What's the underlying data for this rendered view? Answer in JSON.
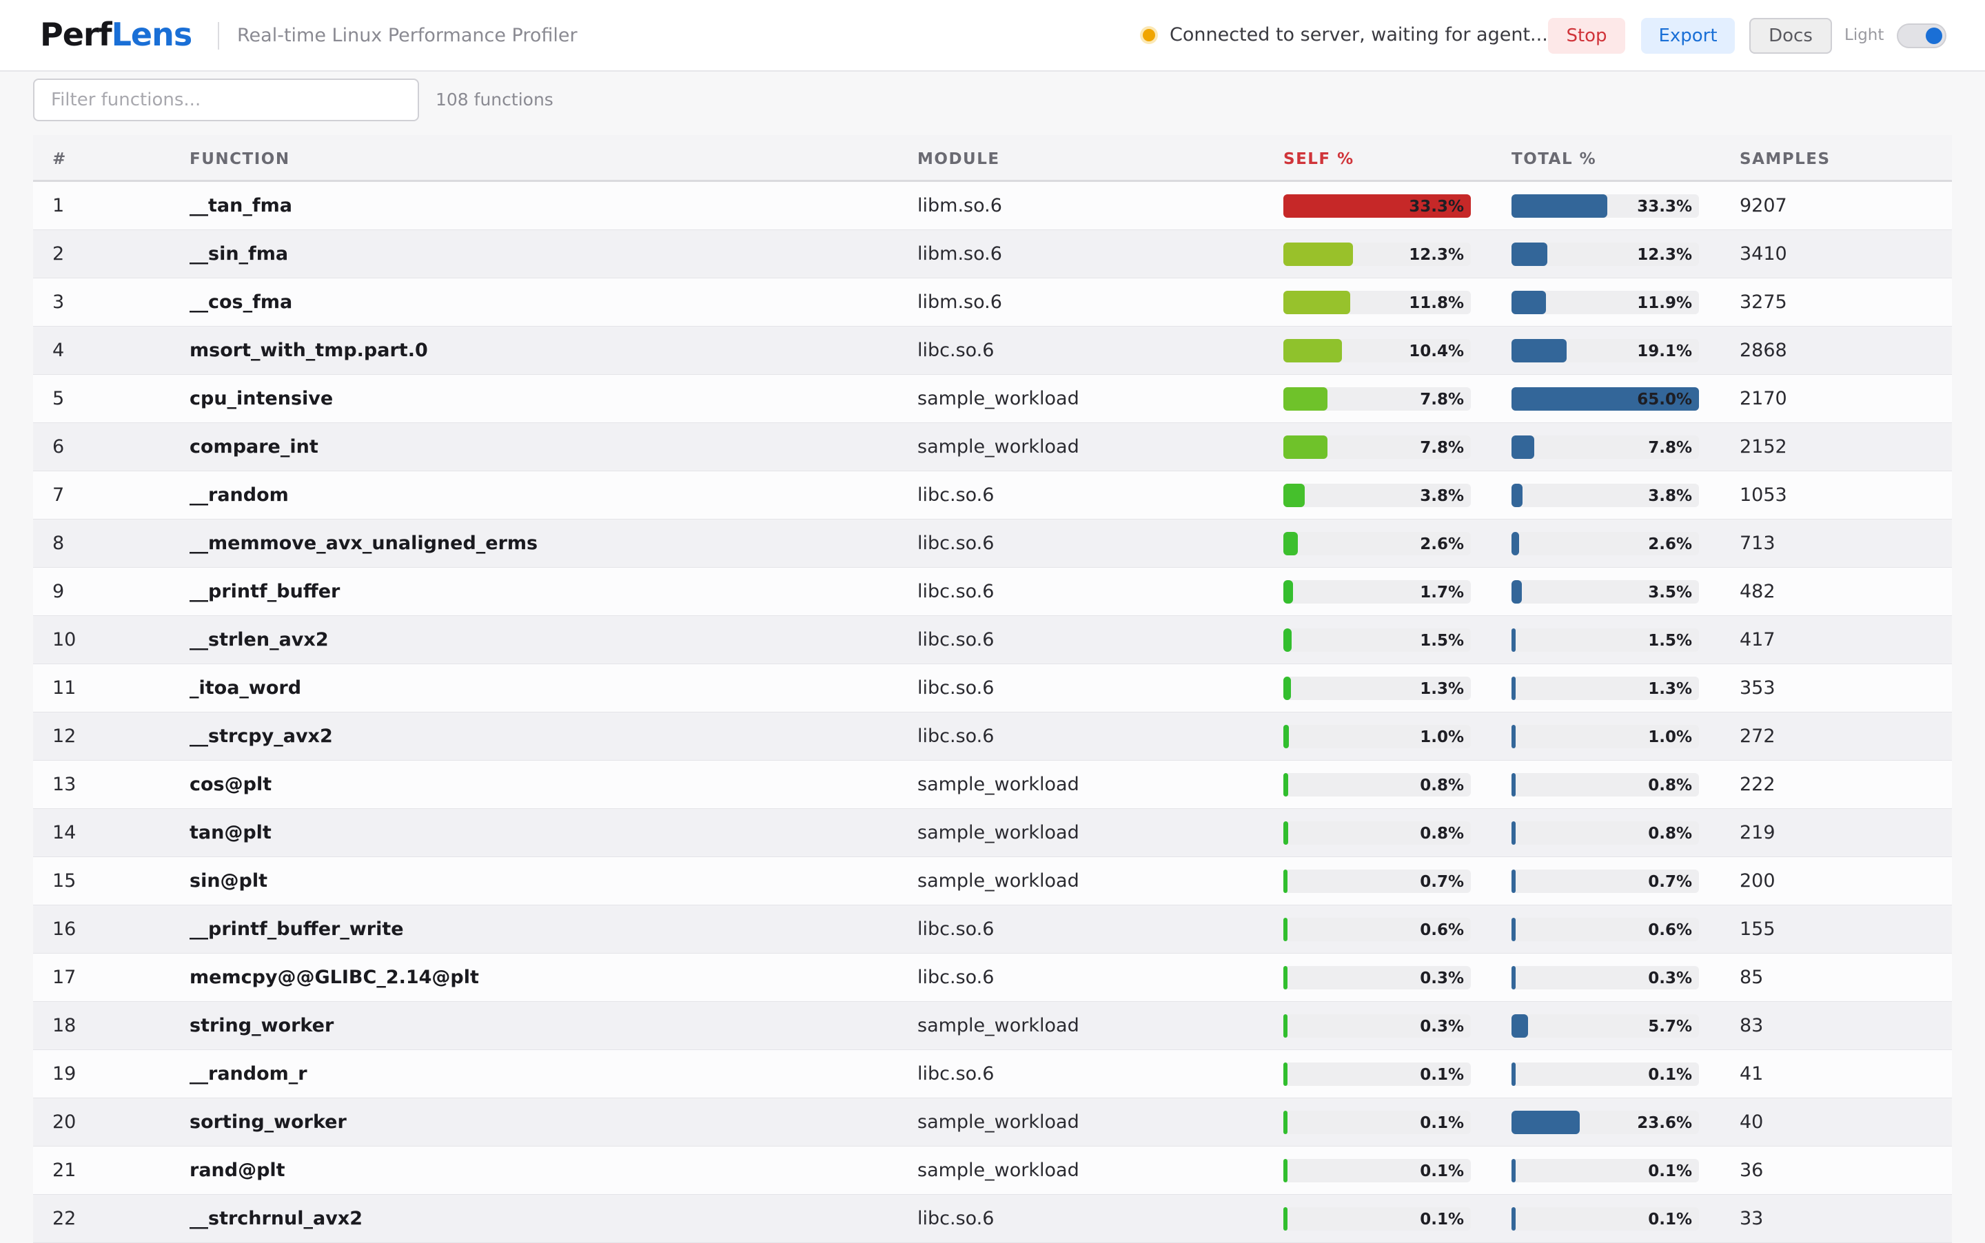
{
  "app": {
    "logo_part1": "Perf",
    "logo_part2": "Lens",
    "subtitle": "Real-time Linux Performance Profiler"
  },
  "status": {
    "text": "Connected to server, waiting for agent...",
    "dot_color": "#f0a500"
  },
  "toolbar": {
    "stop_label": "Stop",
    "export_label": "Export",
    "docs_label": "Docs",
    "theme_label": "Light",
    "theme_toggle_on": true
  },
  "filter": {
    "placeholder": "Filter functions...",
    "value": ""
  },
  "function_count": "108 functions",
  "colors": {
    "accent": "#1a6fd6",
    "self_hot": "#c62828",
    "total_bar": "#336699",
    "stop": "#d0343a"
  },
  "table": {
    "columns": [
      "#",
      "FUNCTION",
      "MODULE",
      "SELF %",
      "TOTAL %",
      "SAMPLES"
    ],
    "rows": [
      {
        "idx": "1",
        "function": "__tan_fma",
        "module": "libm.so.6",
        "self": "33.3%",
        "self_frac": 1.0,
        "self_color": "#c62828",
        "total": "33.3%",
        "total_frac": 0.512,
        "samples": "9207"
      },
      {
        "idx": "2",
        "function": "__sin_fma",
        "module": "libm.so.6",
        "self": "12.3%",
        "self_frac": 0.37,
        "self_color": "#99c12a",
        "total": "12.3%",
        "total_frac": 0.19,
        "samples": "3410"
      },
      {
        "idx": "3",
        "function": "__cos_fma",
        "module": "libm.so.6",
        "self": "11.8%",
        "self_frac": 0.355,
        "self_color": "#97c22c",
        "total": "11.9%",
        "total_frac": 0.183,
        "samples": "3275"
      },
      {
        "idx": "4",
        "function": "msort_with_tmp.part.0",
        "module": "libc.so.6",
        "self": "10.4%",
        "self_frac": 0.312,
        "self_color": "#8fc22c",
        "total": "19.1%",
        "total_frac": 0.294,
        "samples": "2868"
      },
      {
        "idx": "5",
        "function": "cpu_intensive",
        "module": "sample_workload",
        "self": "7.8%",
        "self_frac": 0.234,
        "self_color": "#6fc22a",
        "total": "65.0%",
        "total_frac": 1.0,
        "samples": "2170"
      },
      {
        "idx": "6",
        "function": "compare_int",
        "module": "sample_workload",
        "self": "7.8%",
        "self_frac": 0.234,
        "self_color": "#6fc22a",
        "total": "7.8%",
        "total_frac": 0.12,
        "samples": "2152"
      },
      {
        "idx": "7",
        "function": "__random",
        "module": "libc.so.6",
        "self": "3.8%",
        "self_frac": 0.114,
        "self_color": "#45c02c",
        "total": "3.8%",
        "total_frac": 0.058,
        "samples": "1053"
      },
      {
        "idx": "8",
        "function": "__memmove_avx_unaligned_erms",
        "module": "libc.so.6",
        "self": "2.6%",
        "self_frac": 0.078,
        "self_color": "#3cbf2e",
        "total": "2.6%",
        "total_frac": 0.04,
        "samples": "713"
      },
      {
        "idx": "9",
        "function": "__printf_buffer",
        "module": "libc.so.6",
        "self": "1.7%",
        "self_frac": 0.051,
        "self_color": "#35be2e",
        "total": "3.5%",
        "total_frac": 0.054,
        "samples": "482"
      },
      {
        "idx": "10",
        "function": "__strlen_avx2",
        "module": "libc.so.6",
        "self": "1.5%",
        "self_frac": 0.045,
        "self_color": "#33be2e",
        "total": "1.5%",
        "total_frac": 0.023,
        "samples": "417"
      },
      {
        "idx": "11",
        "function": "_itoa_word",
        "module": "libc.so.6",
        "self": "1.3%",
        "self_frac": 0.039,
        "self_color": "#33be2e",
        "total": "1.3%",
        "total_frac": 0.02,
        "samples": "353"
      },
      {
        "idx": "12",
        "function": "__strcpy_avx2",
        "module": "libc.so.6",
        "self": "1.0%",
        "self_frac": 0.03,
        "self_color": "#31be2e",
        "total": "1.0%",
        "total_frac": 0.015,
        "samples": "272"
      },
      {
        "idx": "13",
        "function": "cos@plt",
        "module": "sample_workload",
        "self": "0.8%",
        "self_frac": 0.024,
        "self_color": "#31be2e",
        "total": "0.8%",
        "total_frac": 0.012,
        "samples": "222"
      },
      {
        "idx": "14",
        "function": "tan@plt",
        "module": "sample_workload",
        "self": "0.8%",
        "self_frac": 0.024,
        "self_color": "#31be2e",
        "total": "0.8%",
        "total_frac": 0.012,
        "samples": "219"
      },
      {
        "idx": "15",
        "function": "sin@plt",
        "module": "sample_workload",
        "self": "0.7%",
        "self_frac": 0.021,
        "self_color": "#31be2e",
        "total": "0.7%",
        "total_frac": 0.011,
        "samples": "200"
      },
      {
        "idx": "16",
        "function": "__printf_buffer_write",
        "module": "libc.so.6",
        "self": "0.6%",
        "self_frac": 0.018,
        "self_color": "#31be2e",
        "total": "0.6%",
        "total_frac": 0.009,
        "samples": "155"
      },
      {
        "idx": "17",
        "function": "memcpy@@GLIBC_2.14@plt",
        "module": "libc.so.6",
        "self": "0.3%",
        "self_frac": 0.009,
        "self_color": "#31be2e",
        "total": "0.3%",
        "total_frac": 0.005,
        "samples": "85"
      },
      {
        "idx": "18",
        "function": "string_worker",
        "module": "sample_workload",
        "self": "0.3%",
        "self_frac": 0.009,
        "self_color": "#31be2e",
        "total": "5.7%",
        "total_frac": 0.088,
        "samples": "83"
      },
      {
        "idx": "19",
        "function": "__random_r",
        "module": "libc.so.6",
        "self": "0.1%",
        "self_frac": 0.003,
        "self_color": "#31be2e",
        "total": "0.1%",
        "total_frac": 0.002,
        "samples": "41"
      },
      {
        "idx": "20",
        "function": "sorting_worker",
        "module": "sample_workload",
        "self": "0.1%",
        "self_frac": 0.003,
        "self_color": "#31be2e",
        "total": "23.6%",
        "total_frac": 0.363,
        "samples": "40"
      },
      {
        "idx": "21",
        "function": "rand@plt",
        "module": "sample_workload",
        "self": "0.1%",
        "self_frac": 0.003,
        "self_color": "#31be2e",
        "total": "0.1%",
        "total_frac": 0.002,
        "samples": "36"
      },
      {
        "idx": "22",
        "function": "__strchrnul_avx2",
        "module": "libc.so.6",
        "self": "0.1%",
        "self_frac": 0.003,
        "self_color": "#31be2e",
        "total": "0.1%",
        "total_frac": 0.002,
        "samples": "33"
      }
    ]
  }
}
